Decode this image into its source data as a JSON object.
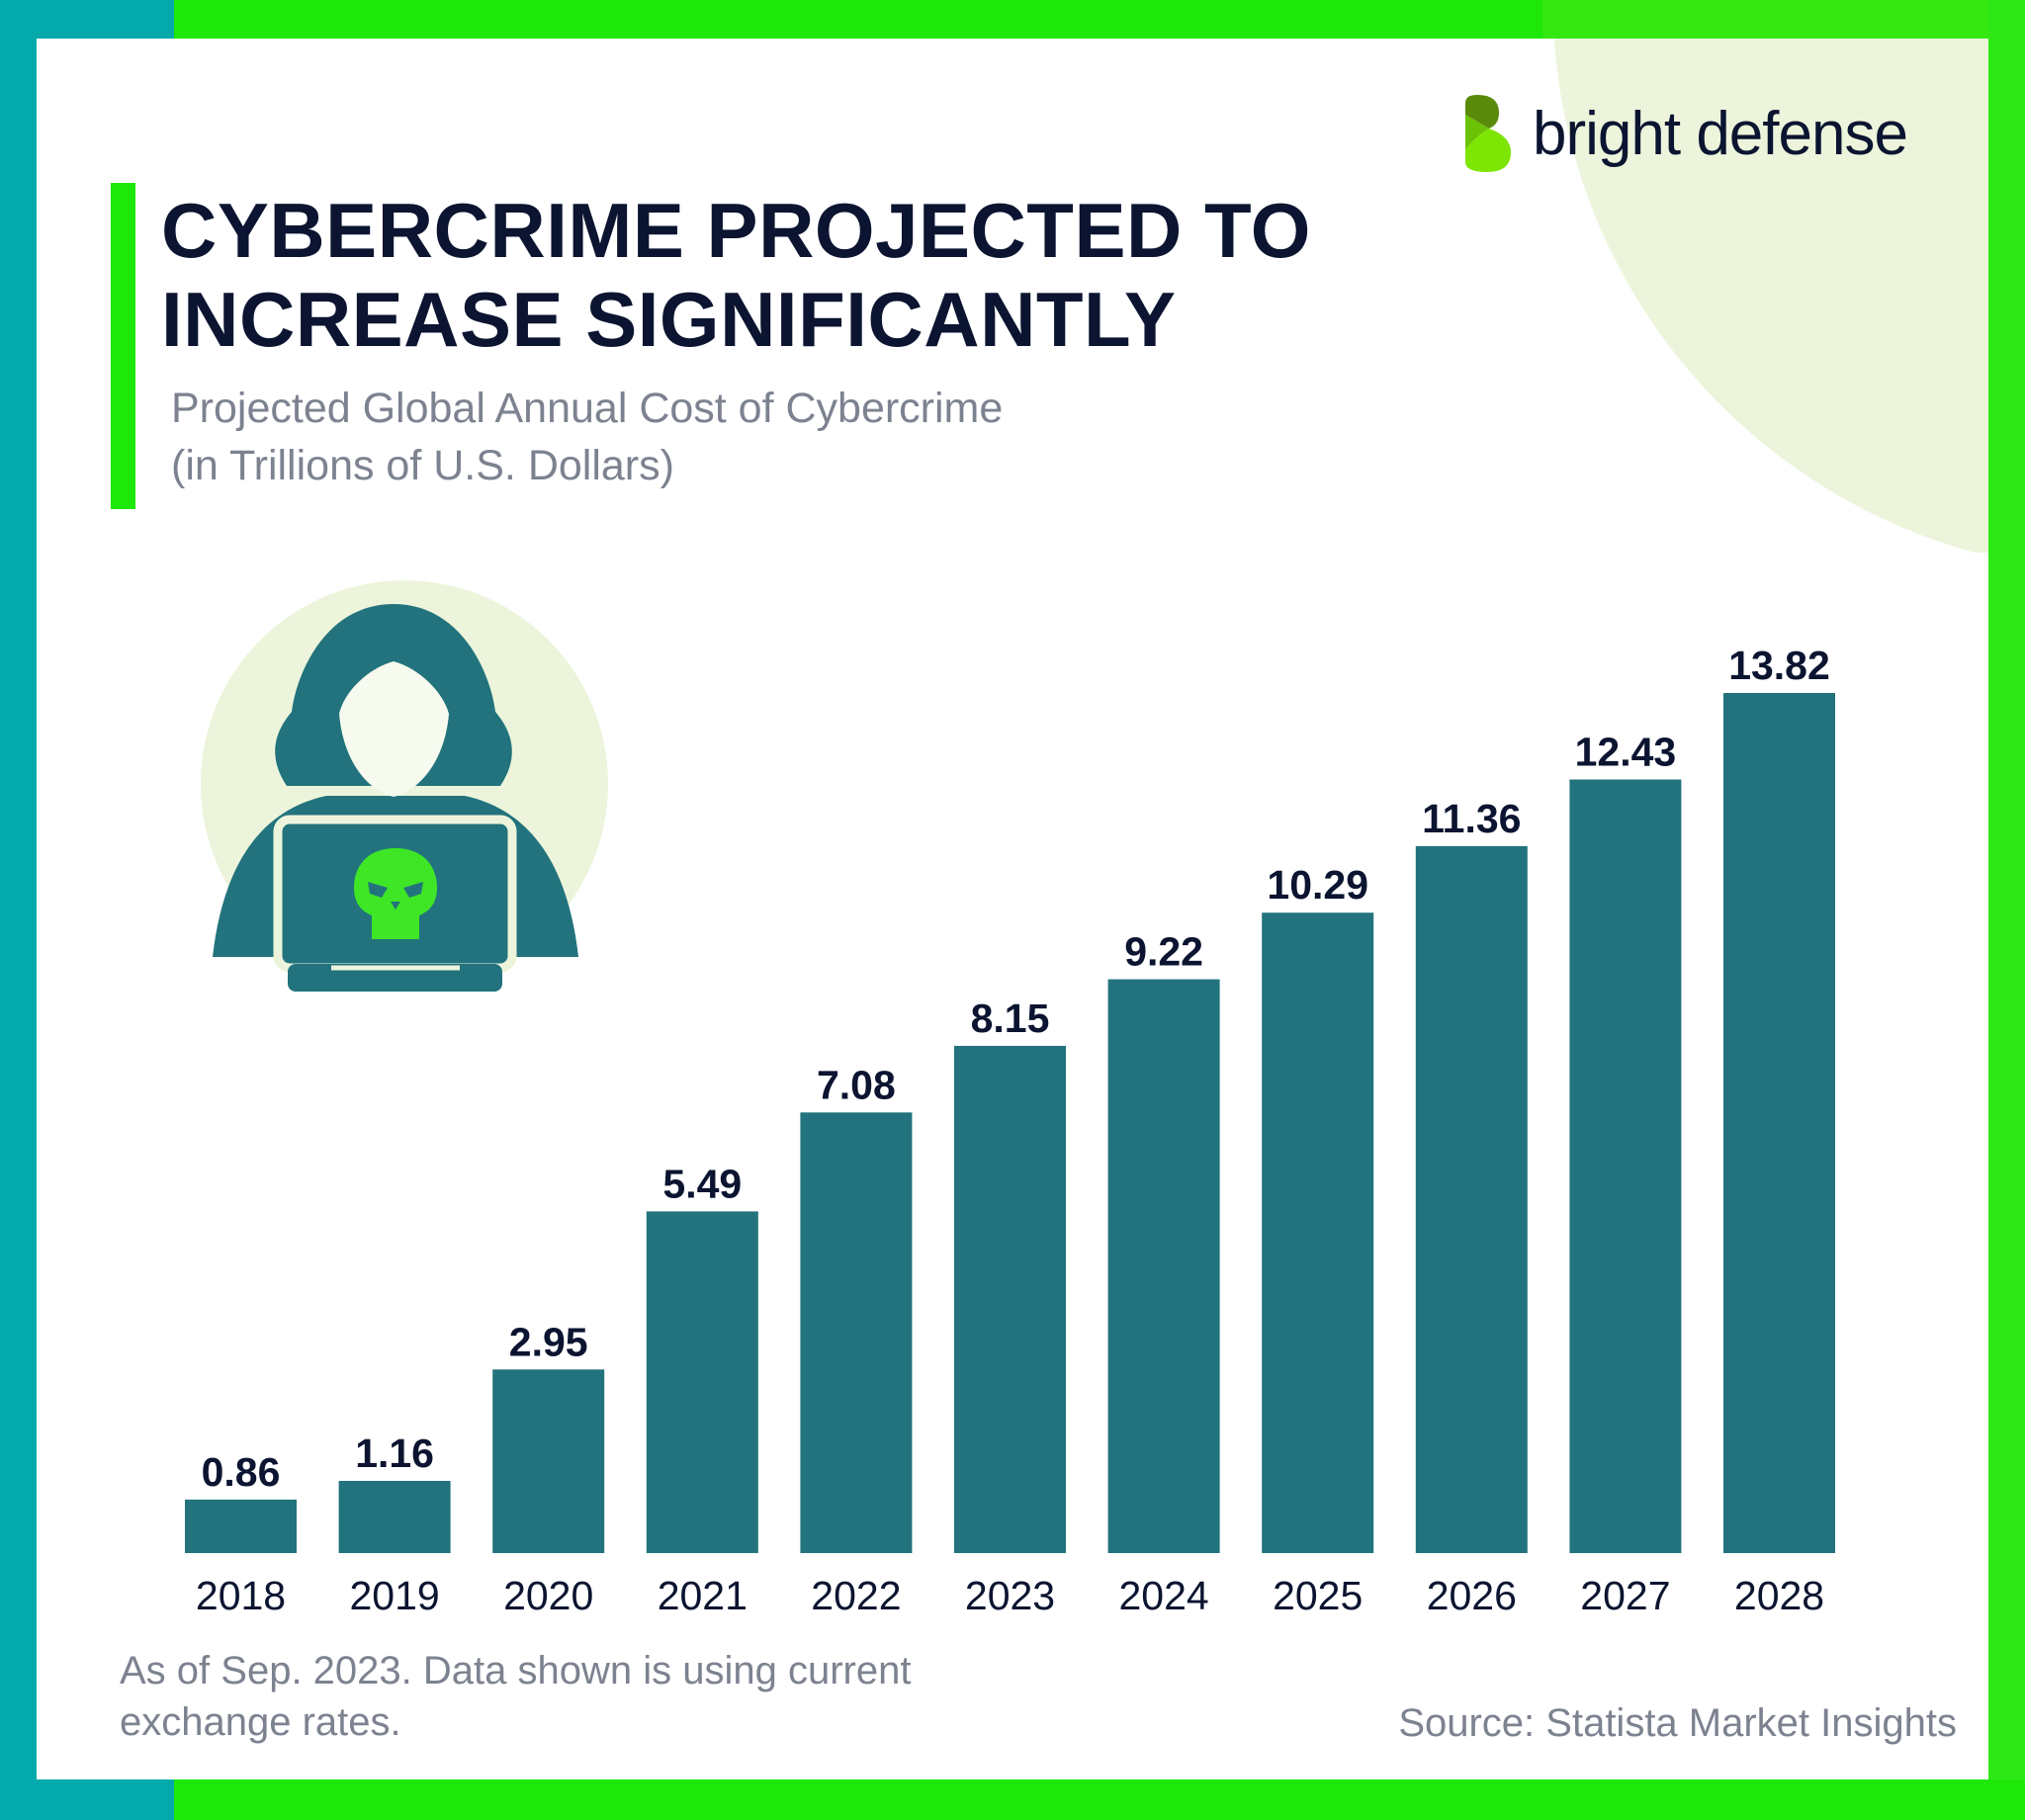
{
  "brand": {
    "name": "bright defense",
    "colors": {
      "green": "#1ee80a",
      "teal": "#04a9ab",
      "bar": "#22737d",
      "text": "#0b1430"
    }
  },
  "title": {
    "line1": "CYBERCRIME PROJECTED TO",
    "line2": "INCREASE SIGNIFICANTLY"
  },
  "subtitle": {
    "line1": "Projected Global Annual Cost of Cybercrime",
    "line2": "(in Trillions of U.S. Dollars)"
  },
  "illustration": {
    "icon": "hacker-with-laptop-skull-icon"
  },
  "chart_data": {
    "type": "bar",
    "categories": [
      "2018",
      "2019",
      "2020",
      "2021",
      "2022",
      "2023",
      "2024",
      "2025",
      "2026",
      "2027",
      "2028"
    ],
    "values": [
      0.86,
      1.16,
      2.95,
      5.49,
      7.08,
      8.15,
      9.22,
      10.29,
      11.36,
      12.43,
      13.82
    ],
    "value_labels": [
      "0.86",
      "1.16",
      "2.95",
      "5.49",
      "7.08",
      "8.15",
      "9.22",
      "10.29",
      "11.36",
      "12.43",
      "13.82"
    ],
    "title": "Projected Global Annual Cost of Cybercrime",
    "ylabel": "(in Trillions of U.S. Dollars)",
    "ylim": [
      0,
      13.82
    ],
    "grid": false,
    "y_axis_visible": false,
    "bar_color": "#22737d"
  },
  "footer": {
    "note_line1": "As of Sep. 2023. Data shown is using current",
    "note_line2": "exchange rates.",
    "source": "Source: Statista Market Insights"
  }
}
